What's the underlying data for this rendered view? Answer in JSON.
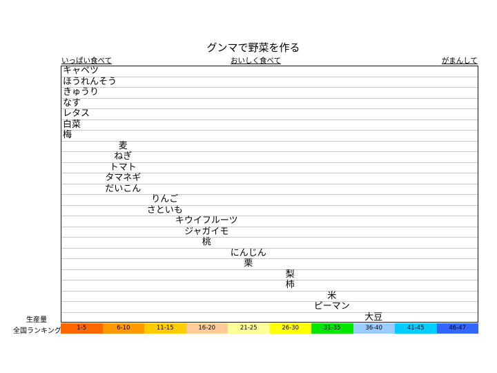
{
  "chart_data": {
    "type": "table",
    "title": "グンマで野菜を作る",
    "header_labels": {
      "left": "いっぱい食べて",
      "middle": "おいしく食べて",
      "right": "がまんして"
    },
    "row_axis_label": "生産量",
    "xlabel": "全国ランキング",
    "categories": [
      "1-5",
      "6-10",
      "11-15",
      "16-20",
      "21-25",
      "26-30",
      "31-35",
      "36-40",
      "41-45",
      "46-47"
    ],
    "category_colors": [
      "#FF6600",
      "#FF9900",
      "#FFCC00",
      "#FFCC99",
      "#FFFF99",
      "#FFFF00",
      "#00E600",
      "#99CCFF",
      "#00CCFF",
      "#3366FF"
    ],
    "items": [
      {
        "name": "キャベツ",
        "rank_group": "1-5",
        "col": 0
      },
      {
        "name": "ほうれんそう",
        "rank_group": "1-5",
        "col": 0
      },
      {
        "name": "きゅうり",
        "rank_group": "1-5",
        "col": 0
      },
      {
        "name": "なす",
        "rank_group": "1-5",
        "col": 0
      },
      {
        "name": "レタス",
        "rank_group": "1-5",
        "col": 0
      },
      {
        "name": "白菜",
        "rank_group": "1-5",
        "col": 0
      },
      {
        "name": "梅",
        "rank_group": "1-5",
        "col": 0
      },
      {
        "name": "麦",
        "rank_group": "6-10",
        "col": 1
      },
      {
        "name": "ねぎ",
        "rank_group": "6-10",
        "col": 1
      },
      {
        "name": "トマト",
        "rank_group": "6-10",
        "col": 1
      },
      {
        "name": "タマネギ",
        "rank_group": "6-10",
        "col": 1
      },
      {
        "name": "だいこん",
        "rank_group": "6-10",
        "col": 1
      },
      {
        "name": "りんご",
        "rank_group": "11-15",
        "col": 2
      },
      {
        "name": "さといも",
        "rank_group": "11-15",
        "col": 2
      },
      {
        "name": "キウイフルーツ",
        "rank_group": "16-20",
        "col": 3
      },
      {
        "name": "ジャガイモ",
        "rank_group": "16-20",
        "col": 3
      },
      {
        "name": "桃",
        "rank_group": "16-20",
        "col": 3
      },
      {
        "name": "にんじん",
        "rank_group": "21-25",
        "col": 4
      },
      {
        "name": "栗",
        "rank_group": "21-25",
        "col": 4
      },
      {
        "name": "梨",
        "rank_group": "26-30",
        "col": 5
      },
      {
        "name": "柿",
        "rank_group": "26-30",
        "col": 5
      },
      {
        "name": "米",
        "rank_group": "31-35",
        "col": 6
      },
      {
        "name": "ピーマン",
        "rank_group": "31-35",
        "col": 6
      },
      {
        "name": "大豆",
        "rank_group": "36-40",
        "col": 7
      }
    ]
  }
}
